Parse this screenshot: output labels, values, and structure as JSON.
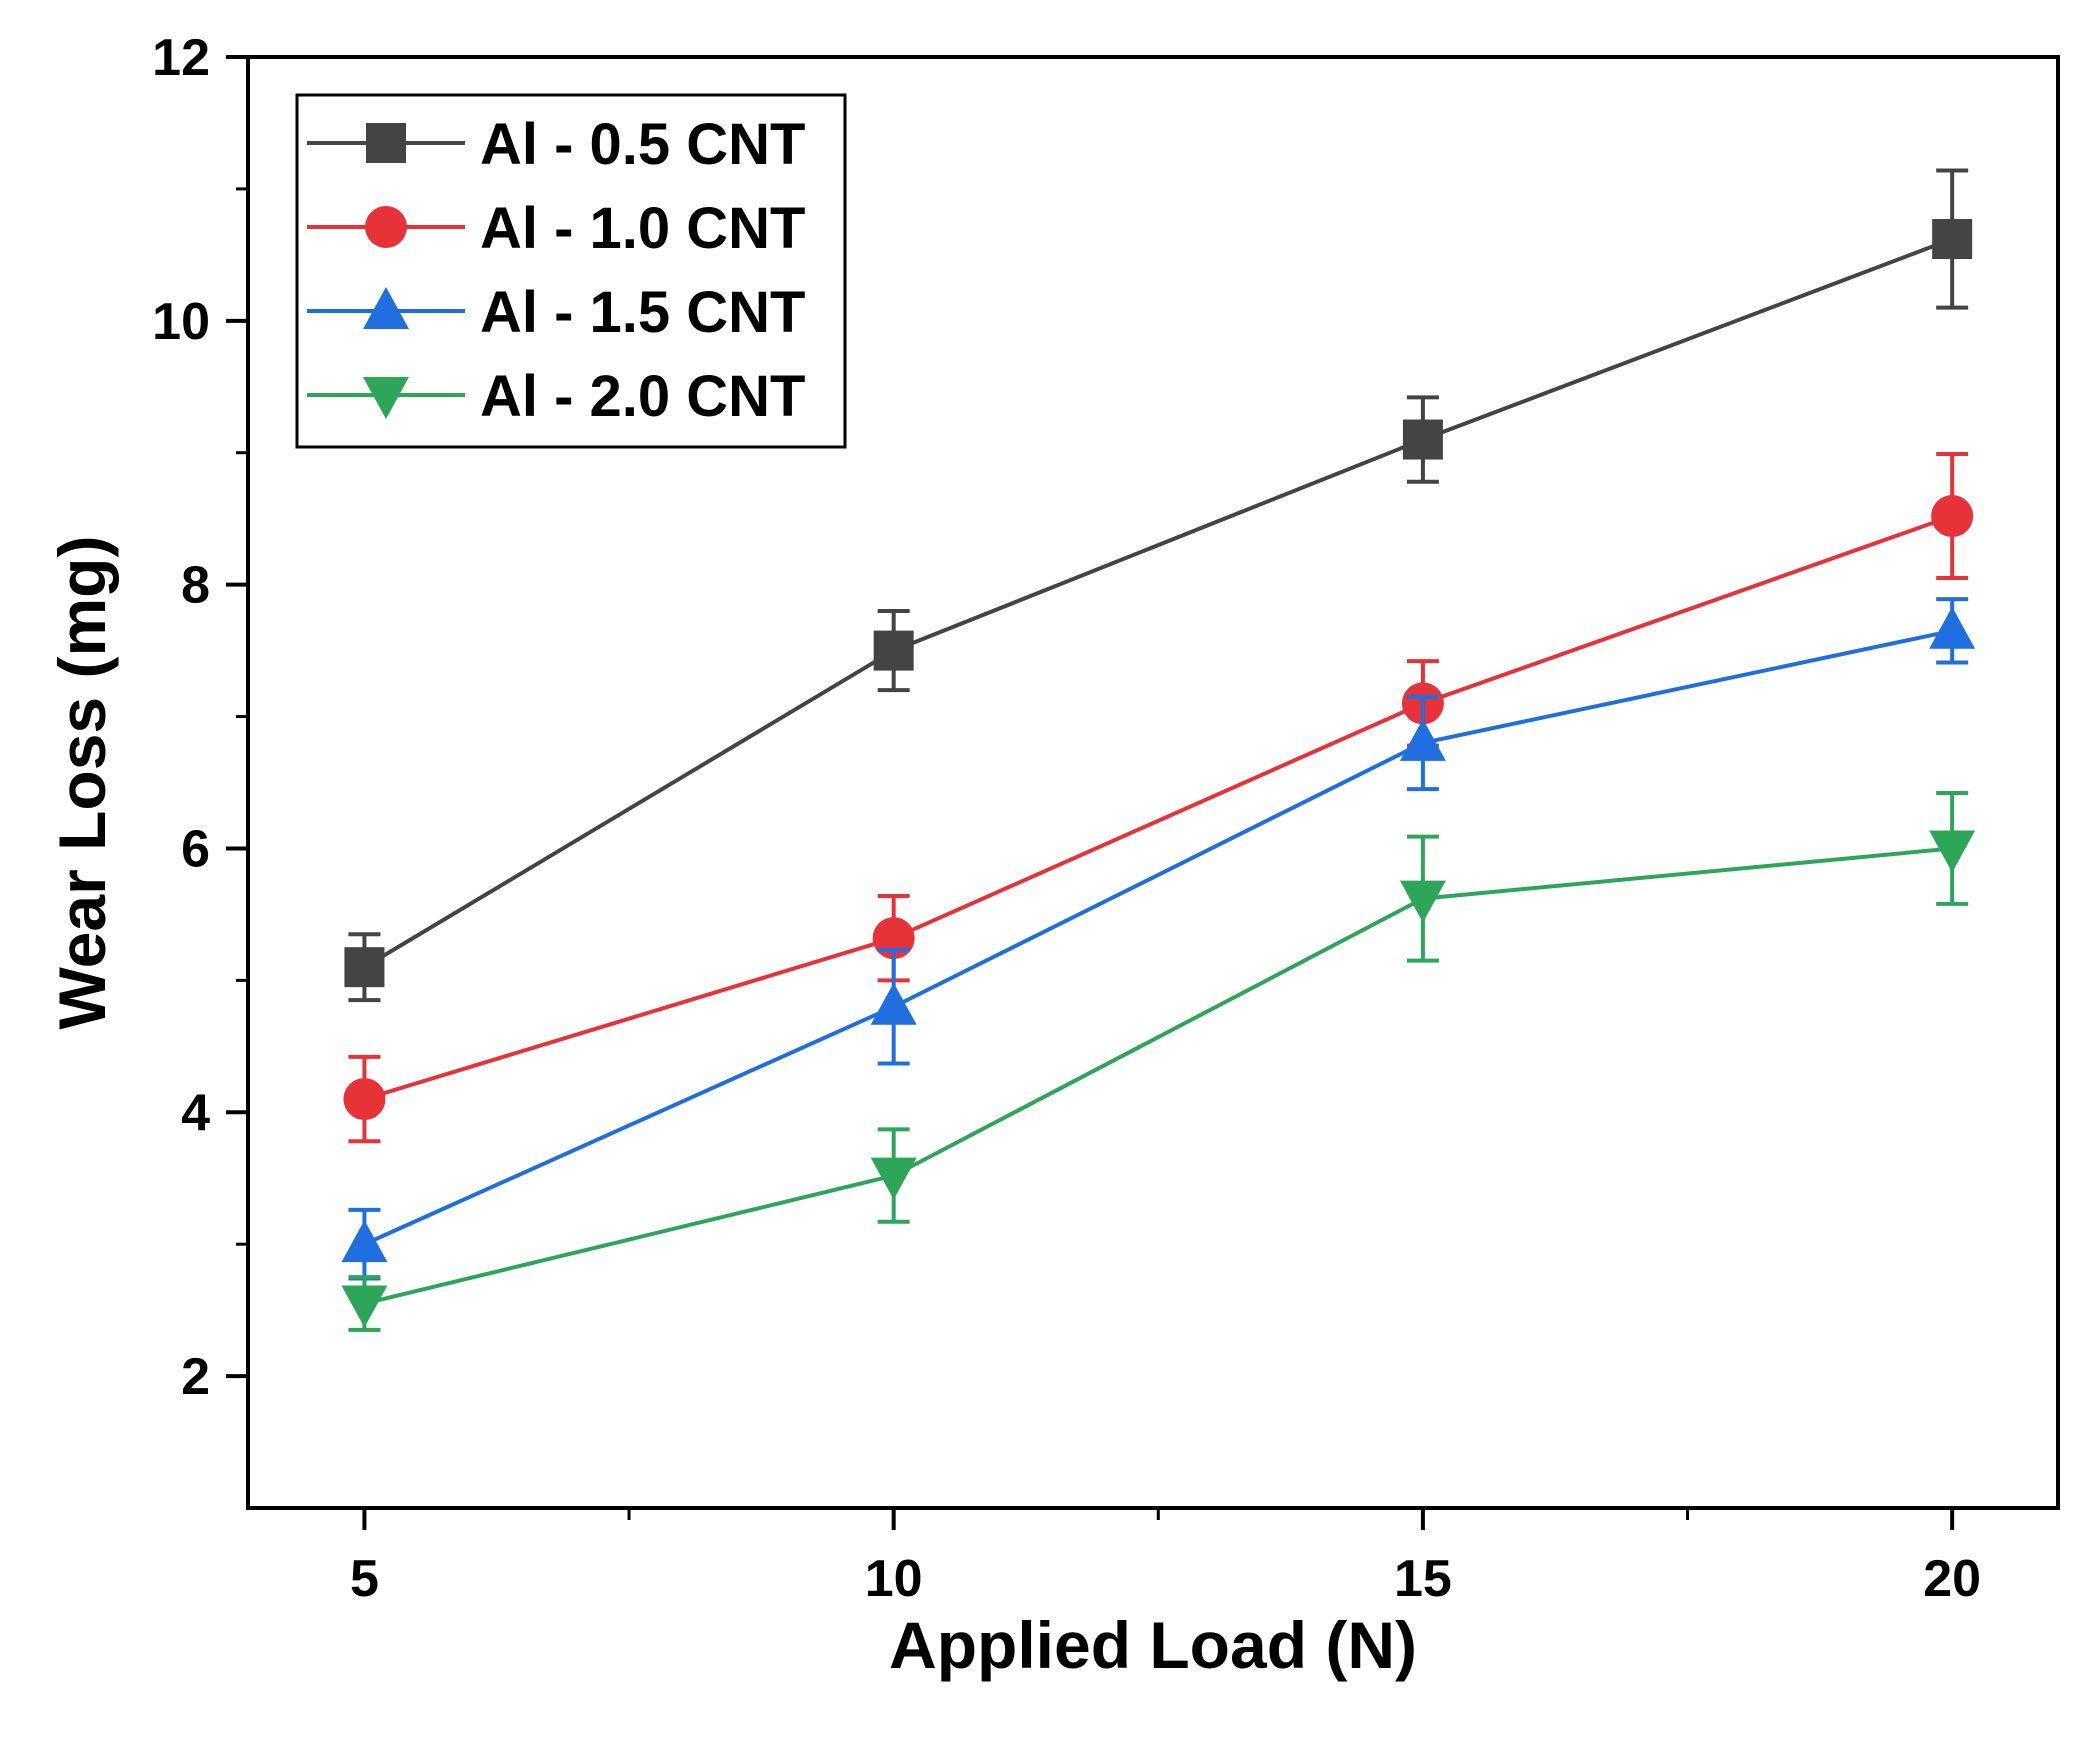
{
  "chart_data": {
    "type": "line",
    "title": "",
    "xlabel": "Applied Load (N)",
    "ylabel": "Wear Loss (mg)",
    "xlim": [
      3.9,
      21.0
    ],
    "ylim": [
      1.0,
      12.0
    ],
    "x_ticks": [
      5,
      10,
      15,
      20
    ],
    "x_minor_ticks": [
      7.5,
      12.5,
      17.5
    ],
    "y_ticks": [
      2,
      4,
      6,
      8,
      10,
      12
    ],
    "y_minor_ticks": [
      3,
      5,
      7,
      9,
      11
    ],
    "grid": false,
    "legend_position": "top-left",
    "x": [
      5,
      10,
      15,
      20
    ],
    "series": [
      {
        "name": "Al - 0.5 CNT",
        "color": "#444444",
        "marker": "square",
        "values": [
          5.1,
          7.5,
          9.1,
          10.62
        ],
        "errors": [
          0.25,
          0.3,
          0.32,
          0.52
        ]
      },
      {
        "name": "Al - 1.0 CNT",
        "color": "#e8323a",
        "marker": "circle",
        "values": [
          4.1,
          5.32,
          7.1,
          8.52
        ],
        "errors": [
          0.32,
          0.32,
          0.32,
          0.47
        ]
      },
      {
        "name": "Al - 1.5 CNT",
        "color": "#1f6fe0",
        "marker": "triangle-up",
        "values": [
          3.0,
          4.8,
          6.8,
          7.65
        ],
        "errors": [
          0.26,
          0.43,
          0.35,
          0.24
        ]
      },
      {
        "name": "Al - 2.0 CNT",
        "color": "#2ea65a",
        "marker": "triangle-down",
        "values": [
          2.55,
          3.52,
          5.62,
          6.0
        ],
        "errors": [
          0.2,
          0.35,
          0.47,
          0.42
        ]
      }
    ]
  }
}
